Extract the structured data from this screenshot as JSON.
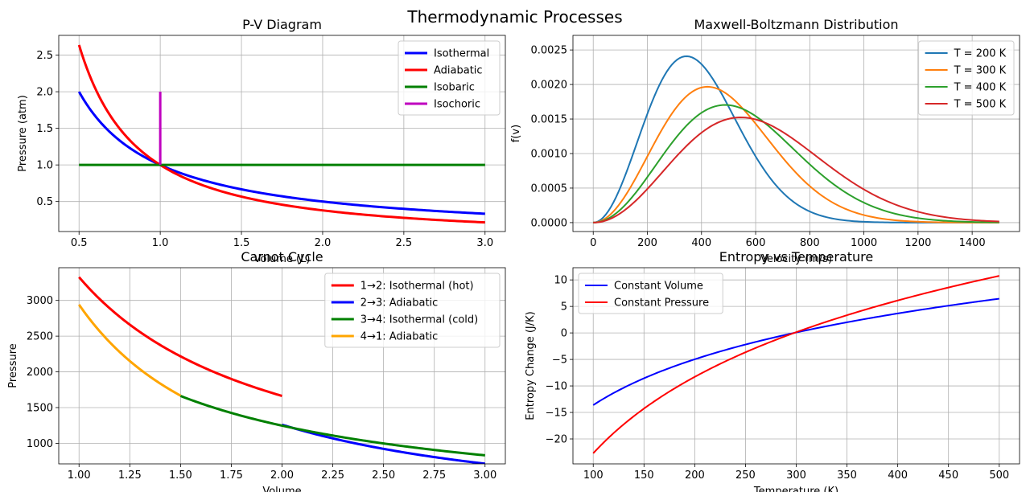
{
  "figure_title": "Thermodynamic Processes",
  "chart_data": [
    {
      "id": "pv",
      "type": "line",
      "title": "P-V Diagram",
      "xlabel": "Volume (L)",
      "ylabel": "Pressure (atm)",
      "xlim": [
        0.375,
        3.125
      ],
      "ylim": [
        0.09,
        2.77
      ],
      "xticks": [
        0.5,
        1.0,
        1.5,
        2.0,
        2.5,
        3.0
      ],
      "xtick_labels": [
        "0.5",
        "1.0",
        "1.5",
        "2.0",
        "2.5",
        "3.0"
      ],
      "yticks": [
        0.5,
        1.0,
        1.5,
        2.0,
        2.5
      ],
      "ytick_labels": [
        "0.5",
        "1.0",
        "1.5",
        "2.0",
        "2.5"
      ],
      "grid": true,
      "legend_position": "upper right",
      "series": [
        {
          "name": "Isothermal",
          "color": "#0000ff",
          "linewidth": 3,
          "x_range": [
            0.5,
            3.0
          ],
          "function": "isothermal"
        },
        {
          "name": "Adiabatic",
          "color": "#ff0000",
          "linewidth": 3,
          "x_range": [
            0.5,
            3.0
          ],
          "function": "adiabatic",
          "gamma": 1.4
        },
        {
          "name": "Isobaric",
          "color": "#008000",
          "linewidth": 3,
          "x_range": [
            0.5,
            3.0
          ],
          "function": "constant",
          "value": 1.0
        },
        {
          "name": "Isochoric",
          "color": "#bf00bf",
          "linewidth": 3,
          "points": [
            [
              1.0,
              1.0
            ],
            [
              1.0,
              2.0
            ]
          ]
        }
      ]
    },
    {
      "id": "mb",
      "type": "line",
      "title": "Maxwell-Boltzmann Distribution",
      "xlabel": "Velocity (m/s)",
      "ylabel": "f(v)",
      "xlim": [
        -75,
        1575
      ],
      "ylim": [
        -0.000129,
        0.002711
      ],
      "xticks": [
        0,
        200,
        400,
        600,
        800,
        1000,
        1200,
        1400
      ],
      "xtick_labels": [
        "0",
        "200",
        "400",
        "600",
        "800",
        "1000",
        "1200",
        "1400"
      ],
      "yticks": [
        0,
        0.0005,
        0.001,
        0.0015,
        0.002,
        0.0025
      ],
      "ytick_labels": [
        "0.0000",
        "0.0005",
        "0.0010",
        "0.0015",
        "0.0020",
        "0.0025"
      ],
      "grid": true,
      "legend_position": "upper right",
      "series": [
        {
          "name": "T = 200 K",
          "color": "#1f77b4",
          "linewidth": 2,
          "temperature": 200,
          "x_range": [
            0,
            1500
          ],
          "function": "maxwell"
        },
        {
          "name": "T = 300 K",
          "color": "#ff7f0e",
          "linewidth": 2,
          "temperature": 300,
          "x_range": [
            0,
            1500
          ],
          "function": "maxwell"
        },
        {
          "name": "T = 400 K",
          "color": "#2ca02c",
          "linewidth": 2,
          "temperature": 400,
          "x_range": [
            0,
            1500
          ],
          "function": "maxwell"
        },
        {
          "name": "T = 500 K",
          "color": "#d62728",
          "linewidth": 2,
          "temperature": 500,
          "x_range": [
            0,
            1500
          ],
          "function": "maxwell"
        }
      ]
    },
    {
      "id": "carnot",
      "type": "line",
      "title": "Carnot Cycle",
      "xlabel": "Volume",
      "ylabel": "Pressure",
      "xlim": [
        0.9,
        3.1
      ],
      "ylim": [
        712,
        3458
      ],
      "xticks": [
        1.0,
        1.25,
        1.5,
        1.75,
        2.0,
        2.25,
        2.5,
        2.75,
        3.0
      ],
      "xtick_labels": [
        "1.00",
        "1.25",
        "1.50",
        "1.75",
        "2.00",
        "2.25",
        "2.50",
        "2.75",
        "3.00"
      ],
      "yticks": [
        1000,
        1500,
        2000,
        2500,
        3000
      ],
      "ytick_labels": [
        "1000",
        "1500",
        "2000",
        "2500",
        "3000"
      ],
      "grid": true,
      "legend_position": "upper right",
      "series": [
        {
          "name": "1→2: Isothermal (hot)",
          "color": "#ff0000",
          "linewidth": 3,
          "x_range": [
            1.0,
            2.0
          ],
          "function": "power",
          "k": 3326,
          "exponent": 1.0
        },
        {
          "name": "2→3: Adiabatic",
          "color": "#0000ff",
          "linewidth": 3,
          "x_range": [
            2.0,
            3.0
          ],
          "function": "power",
          "k": 6652,
          "exponent": 1.4,
          "scale": 0.5
        },
        {
          "name": "3→4: Isothermal (cold)",
          "color": "#008000",
          "linewidth": 3,
          "x_range": [
            1.5,
            3.0
          ],
          "function": "power",
          "k": 2494,
          "exponent": 1.0
        },
        {
          "name": "4→1: Adiabatic",
          "color": "#ffa500",
          "linewidth": 3,
          "x_range": [
            1.0,
            1.5
          ],
          "function": "power",
          "k": 2941,
          "exponent": 1.4
        }
      ]
    },
    {
      "id": "entropy",
      "type": "line",
      "title": "Entropy vs Temperature",
      "xlabel": "Temperature (K)",
      "ylabel": "Entropy Change (J/K)",
      "xlim": [
        80,
        520
      ],
      "ylim": [
        -24.7,
        12.3
      ],
      "xticks": [
        100,
        150,
        200,
        250,
        300,
        350,
        400,
        450,
        500
      ],
      "xtick_labels": [
        "100",
        "150",
        "200",
        "250",
        "300",
        "350",
        "400",
        "450",
        "500"
      ],
      "yticks": [
        -20,
        -15,
        -10,
        -5,
        0,
        5,
        10
      ],
      "ytick_labels": [
        "−20",
        "−15",
        "−10",
        "−5",
        "0",
        "5",
        "10"
      ],
      "grid": true,
      "legend_position": "upper left",
      "series": [
        {
          "name": "Constant Volume",
          "color": "#0000ff",
          "linewidth": 2,
          "x_range": [
            100,
            500
          ],
          "function": "log",
          "coef": 12.47,
          "ref": 298
        },
        {
          "name": "Constant Pressure",
          "color": "#ff0000",
          "linewidth": 2,
          "x_range": [
            100,
            500
          ],
          "function": "log",
          "coef": 20.79,
          "ref": 298
        }
      ]
    }
  ]
}
